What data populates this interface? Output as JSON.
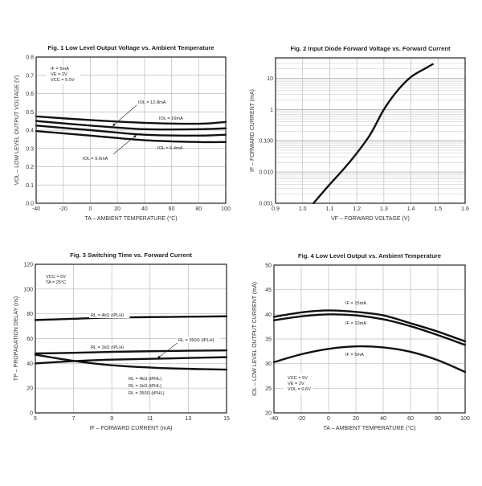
{
  "chart_data": [
    {
      "type": "line",
      "title": "Fig. 1  Low Level Output Voltage vs. Ambient Temperature",
      "xlabel": "TA – AMBIENT TEMPERATURE (°C)",
      "ylabel": "VOL – LOW LEVEL OUTPUT VOLTAGE (V)",
      "xlim": [
        -40,
        100
      ],
      "ylim": [
        0,
        0.8
      ],
      "yscale": "linear",
      "grid": true,
      "xticks": [
        -40,
        -20,
        0,
        20,
        40,
        60,
        80,
        100
      ],
      "xtick_labels": [
        "-40",
        "-20",
        "0",
        "20",
        "40",
        "60",
        "80",
        "100"
      ],
      "yticks": [
        0,
        0.1,
        0.2,
        0.3,
        0.4,
        0.5,
        0.6,
        0.7,
        0.8
      ],
      "ytick_labels": [
        "0.0",
        "0.1",
        "0.2",
        "0.3",
        "0.4",
        "0.5",
        "0.6",
        "0.7",
        "0.8"
      ],
      "x": [
        -40,
        0,
        40,
        80,
        100
      ],
      "series": [
        {
          "name": "IOL = 16mA",
          "values": [
            0.475,
            0.455,
            0.44,
            0.435,
            0.445
          ]
        },
        {
          "name": "IOL = 12.8mA",
          "values": [
            0.45,
            0.425,
            0.405,
            0.405,
            0.41
          ]
        },
        {
          "name": "IOL = 9.6mA",
          "values": [
            0.425,
            0.4,
            0.375,
            0.37,
            0.375
          ]
        },
        {
          "name": "IOL = 6.4mA",
          "values": [
            0.395,
            0.37,
            0.345,
            0.335,
            0.335
          ]
        }
      ],
      "annotations": [
        "IF = 5mA",
        "VE = 2V",
        "VCC = 5.5V",
        "IOL = 12.8mA",
        "IOL = 16mA",
        "IOL = 6.4mA",
        "IOL = 9.6mA"
      ]
    },
    {
      "type": "line",
      "title": "Fig. 2 Input Diode Forward Voltage vs. Forward Current",
      "xlabel": "VF – FORWARD VOLTAGE (V)",
      "ylabel": "IF – FORWARD CURRENT (mA)",
      "xlim": [
        0.9,
        1.6
      ],
      "ylim": [
        0.001,
        45
      ],
      "yscale": "log",
      "grid": true,
      "xticks": [
        0.9,
        1.0,
        1.1,
        1.2,
        1.3,
        1.4,
        1.5,
        1.6
      ],
      "xtick_labels": [
        "0.9",
        "1.0",
        "1.1",
        "1.2",
        "1.3",
        "1.4",
        "1.5",
        "1.6"
      ],
      "yticks": [
        0.001,
        0.01,
        0.1,
        1,
        10
      ],
      "ytick_labels": [
        "0.001",
        "0.010",
        "0.100",
        "1",
        "10"
      ],
      "x": [
        1.04,
        1.1,
        1.15,
        1.2,
        1.25,
        1.3,
        1.35,
        1.4,
        1.45,
        1.48
      ],
      "series": [
        {
          "name": "IF",
          "values": [
            0.001,
            0.004,
            0.012,
            0.04,
            0.16,
            1.0,
            4.0,
            11,
            20,
            28
          ]
        }
      ],
      "annotations": []
    },
    {
      "type": "line",
      "title": "Fig. 3  Switching Time vs. Forward Current",
      "xlabel": "IF – FORWARD CURRENT (mA)",
      "ylabel": "TP – PROPAGATION DELAY (ns)",
      "xlim": [
        5,
        15
      ],
      "ylim": [
        0,
        120
      ],
      "yscale": "linear",
      "grid": true,
      "xticks": [
        5,
        7,
        9,
        11,
        13,
        15
      ],
      "xtick_labels": [
        "5",
        "7",
        "9",
        "11",
        "13",
        "15"
      ],
      "yticks": [
        0,
        20,
        40,
        60,
        80,
        100,
        120
      ],
      "ytick_labels": [
        "0",
        "20",
        "40",
        "60",
        "80",
        "100",
        "120"
      ],
      "x": [
        5,
        7,
        9,
        12,
        15
      ],
      "series": [
        {
          "name": "RL = 4kΩ (tPLH)",
          "values": [
            75,
            76,
            77,
            77.5,
            78
          ]
        },
        {
          "name": "RL = 1kΩ (tPLH)",
          "values": [
            48,
            48.5,
            49.3,
            50,
            50.5
          ]
        },
        {
          "name": "RL = 350Ω (tPLH)",
          "values": [
            40,
            41.8,
            43,
            44,
            45
          ]
        },
        {
          "name": "RL = 4kΩ / 1kΩ / 350Ω (tPHL)",
          "values": [
            47,
            42,
            38.5,
            36,
            35
          ]
        }
      ],
      "annotations": [
        "VCC = 5V",
        "TA = 25°C",
        "RL = 4kΩ (tPLH)",
        "RL = 1kΩ (tPLH)",
        "RL = 350Ω (tPLH)",
        "RL = 4kΩ (tPHL)",
        "RL = 1kΩ (tPHL)",
        "RL = 350Ω (tPHL)"
      ]
    },
    {
      "type": "line",
      "title": "Fig. 4  Low Level Output vs. Ambient Temperature",
      "xlabel": "TA – AMBIENT TEMPERATURE (°C)",
      "ylabel": "IOL – LOW LEVEL OUTPUT CURRENT (mA)",
      "xlim": [
        -40,
        100
      ],
      "ylim": [
        20,
        50
      ],
      "yscale": "linear",
      "grid": true,
      "xticks": [
        -40,
        -20,
        0,
        20,
        40,
        60,
        80,
        100
      ],
      "xtick_labels": [
        "-40",
        "-20",
        "0",
        "20",
        "40",
        "60",
        "80",
        "100"
      ],
      "yticks": [
        20,
        25,
        30,
        35,
        40,
        45,
        50
      ],
      "ytick_labels": [
        "20",
        "25",
        "30",
        "35",
        "40",
        "45",
        "50"
      ],
      "x": [
        -40,
        -20,
        0,
        20,
        40,
        60,
        80,
        100
      ],
      "series": [
        {
          "name": "IF = 15mA",
          "values": [
            39.5,
            40.4,
            40.8,
            40.5,
            39.8,
            38.2,
            36.5,
            34.5
          ]
        },
        {
          "name": "IF = 10mA",
          "values": [
            38.8,
            39.6,
            40.0,
            39.8,
            39.0,
            37.6,
            35.8,
            33.8
          ]
        },
        {
          "name": "IF = 5mA",
          "values": [
            30.3,
            31.9,
            33.0,
            33.5,
            33.3,
            32.4,
            30.7,
            28.3
          ]
        }
      ],
      "annotations": [
        "IF = 15mA",
        "IF = 10mA",
        "IF = 5mA",
        "VCC = 5V",
        "VE = 2V",
        "VOL = 0.6V"
      ]
    }
  ]
}
